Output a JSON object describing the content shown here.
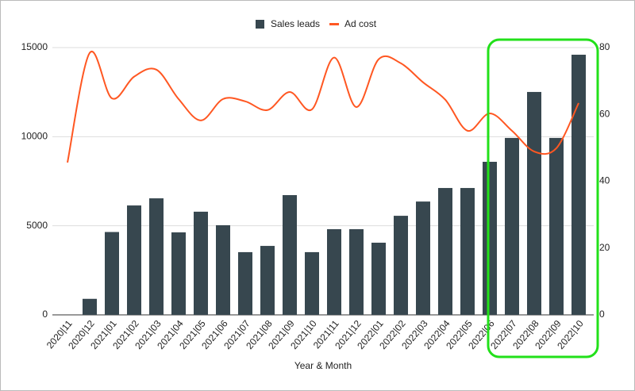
{
  "chart_data": {
    "type": "bar-line",
    "x_label": "Year & Month",
    "categories": [
      "2020|11",
      "2020|12",
      "2021|01",
      "2021|02",
      "2021|03",
      "2021|04",
      "2021|05",
      "2021|06",
      "2021|07",
      "2021|08",
      "2021|09",
      "2021|10",
      "2021|11",
      "2021|12",
      "2022|01",
      "2022|02",
      "2022|03",
      "2022|04",
      "2022|05",
      "2022|06",
      "2022|07",
      "2022|08",
      "2022|09",
      "2022|10"
    ],
    "series": [
      {
        "name": "Sales leads",
        "color": "#37474f",
        "type": "bar",
        "values": [
          0,
          900,
          4650,
          6140,
          6540,
          4630,
          5790,
          5030,
          3520,
          3870,
          6720,
          3520,
          4810,
          4810,
          4050,
          5560,
          6360,
          7120,
          7120,
          8590,
          9930,
          12510,
          9930,
          14600
        ]
      },
      {
        "name": "Ad cost",
        "color": "#ff5722",
        "type": "line",
        "axis": "y2",
        "values": [
          45.6,
          78.4,
          64.8,
          71.3,
          73.4,
          64.6,
          58.2,
          64.6,
          63.9,
          61.3,
          66.7,
          61.5,
          77,
          62.2,
          76.5,
          75.3,
          69.6,
          64.4,
          55.1,
          60.3,
          55.1,
          48.9,
          49.9,
          63.4
        ]
      }
    ],
    "ylim": [
      0,
      15000
    ],
    "yticks": [
      0,
      5000,
      10000,
      15000
    ],
    "y2lim": [
      0,
      80
    ],
    "y2ticks": [
      0,
      20,
      40,
      60,
      80
    ],
    "grid": true,
    "legend": "top"
  }
}
